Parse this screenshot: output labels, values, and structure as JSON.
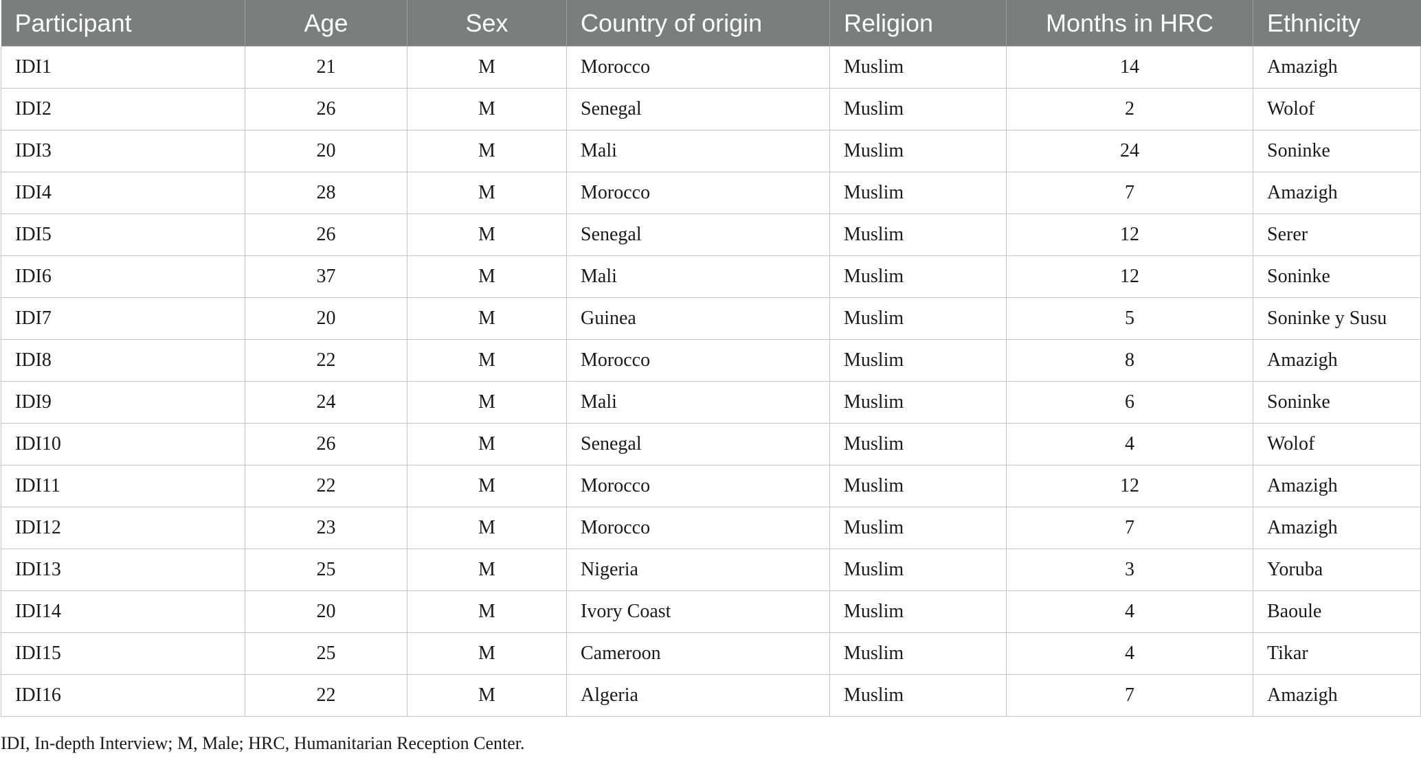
{
  "table": {
    "headers": [
      "Participant",
      "Age",
      "Sex",
      "Country of origin",
      "Religion",
      "Months in HRC",
      "Ethnicity"
    ],
    "rows": [
      [
        "IDI1",
        "21",
        "M",
        "Morocco",
        "Muslim",
        "14",
        "Amazigh"
      ],
      [
        "IDI2",
        "26",
        "M",
        "Senegal",
        "Muslim",
        "2",
        "Wolof"
      ],
      [
        "IDI3",
        "20",
        "M",
        "Mali",
        "Muslim",
        "24",
        "Soninke"
      ],
      [
        "IDI4",
        "28",
        "M",
        "Morocco",
        "Muslim",
        "7",
        "Amazigh"
      ],
      [
        "IDI5",
        "26",
        "M",
        "Senegal",
        "Muslim",
        "12",
        "Serer"
      ],
      [
        "IDI6",
        "37",
        "M",
        "Mali",
        "Muslim",
        "12",
        "Soninke"
      ],
      [
        "IDI7",
        "20",
        "M",
        "Guinea",
        "Muslim",
        "5",
        "Soninke y Susu"
      ],
      [
        "IDI8",
        "22",
        "M",
        "Morocco",
        "Muslim",
        "8",
        "Amazigh"
      ],
      [
        "IDI9",
        "24",
        "M",
        "Mali",
        "Muslim",
        "6",
        "Soninke"
      ],
      [
        "IDI10",
        "26",
        "M",
        "Senegal",
        "Muslim",
        "4",
        "Wolof"
      ],
      [
        "IDI11",
        "22",
        "M",
        "Morocco",
        "Muslim",
        "12",
        "Amazigh"
      ],
      [
        "IDI12",
        "23",
        "M",
        "Morocco",
        "Muslim",
        "7",
        "Amazigh"
      ],
      [
        "IDI13",
        "25",
        "M",
        "Nigeria",
        "Muslim",
        "3",
        "Yoruba"
      ],
      [
        "IDI14",
        "20",
        "M",
        "Ivory Coast",
        "Muslim",
        "4",
        "Baoule"
      ],
      [
        "IDI15",
        "25",
        "M",
        "Cameroon",
        "Muslim",
        "4",
        "Tikar"
      ],
      [
        "IDI16",
        "22",
        "M",
        "Algeria",
        "Muslim",
        "7",
        "Amazigh"
      ]
    ]
  },
  "footnote": "IDI, In-depth Interview; M, Male; HRC, Humanitarian Reception Center."
}
